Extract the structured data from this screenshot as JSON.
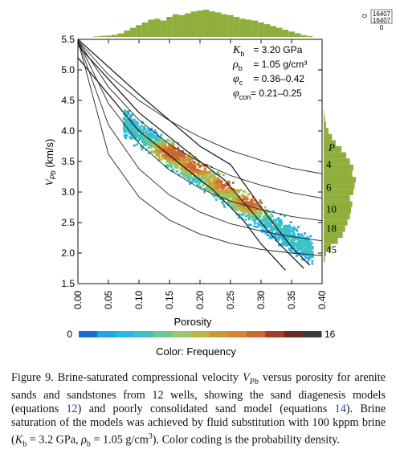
{
  "chart_data": {
    "type": "scatter",
    "title": "",
    "xlabel": "Porosity",
    "ylabel_main": "V",
    "ylabel_sub": "Pb",
    "ylabel_unit": " (km/s)",
    "xlim": [
      0.0,
      0.4
    ],
    "ylim": [
      1.5,
      5.5
    ],
    "x_ticks": [
      "0.00",
      "0.05",
      "0.10",
      "0.15",
      "0.20",
      "0.25",
      "0.30",
      "0.35",
      "0.40"
    ],
    "y_ticks": [
      "1.5",
      "2.0",
      "2.5",
      "3.0",
      "3.5",
      "4.0",
      "4.5",
      "5.0",
      "5.5"
    ],
    "grid": false,
    "parameters": [
      {
        "symbol": "K",
        "sub": "b",
        "text": " = 3.20 GPa"
      },
      {
        "symbol": "ρ",
        "sub": "b",
        "text": " = 1.05 g/cm³"
      },
      {
        "symbol": "φ",
        "sub": "c",
        "text": " = 0.36–0.42"
      },
      {
        "symbol": "φ",
        "sub": "con",
        "text": "= 0.21–0.25"
      }
    ],
    "pressure_label": "P",
    "pressure_values": [
      "4",
      "6",
      "10",
      "18",
      "45"
    ],
    "model_curves": [
      {
        "p": "4",
        "points": [
          [
            0.0,
            5.48
          ],
          [
            0.05,
            4.92
          ],
          [
            0.1,
            4.5
          ],
          [
            0.15,
            4.17
          ],
          [
            0.2,
            3.9
          ],
          [
            0.25,
            3.68
          ],
          [
            0.3,
            3.52
          ],
          [
            0.35,
            3.39
          ],
          [
            0.4,
            3.3
          ]
        ]
      },
      {
        "p": "6",
        "points": [
          [
            0.0,
            5.48
          ],
          [
            0.05,
            4.72
          ],
          [
            0.1,
            4.18
          ],
          [
            0.15,
            3.78
          ],
          [
            0.2,
            3.49
          ],
          [
            0.25,
            3.27
          ],
          [
            0.3,
            3.11
          ],
          [
            0.35,
            2.99
          ],
          [
            0.4,
            2.9
          ]
        ]
      },
      {
        "p": "10",
        "points": [
          [
            0.0,
            5.48
          ],
          [
            0.05,
            4.45
          ],
          [
            0.1,
            3.8
          ],
          [
            0.15,
            3.36
          ],
          [
            0.2,
            3.06
          ],
          [
            0.25,
            2.85
          ],
          [
            0.3,
            2.71
          ],
          [
            0.35,
            2.6
          ],
          [
            0.4,
            2.53
          ]
        ]
      },
      {
        "p": "18",
        "points": [
          [
            0.0,
            5.48
          ],
          [
            0.05,
            4.1
          ],
          [
            0.1,
            3.38
          ],
          [
            0.15,
            2.95
          ],
          [
            0.2,
            2.67
          ],
          [
            0.25,
            2.48
          ],
          [
            0.3,
            2.36
          ],
          [
            0.35,
            2.27
          ],
          [
            0.4,
            2.2
          ]
        ]
      },
      {
        "p": "45",
        "points": [
          [
            0.0,
            5.48
          ],
          [
            0.05,
            3.62
          ],
          [
            0.1,
            2.92
          ],
          [
            0.15,
            2.54
          ],
          [
            0.2,
            2.31
          ],
          [
            0.25,
            2.16
          ],
          [
            0.3,
            2.06
          ],
          [
            0.35,
            2.0
          ],
          [
            0.4,
            1.96
          ]
        ]
      }
    ],
    "diagenesis_lines": [
      [
        [
          0.0,
          5.5
        ],
        [
          0.1,
          4.6
        ],
        [
          0.2,
          3.75
        ],
        [
          0.25,
          3.45
        ],
        [
          0.3,
          2.75
        ],
        [
          0.35,
          2.1
        ],
        [
          0.38,
          1.8
        ]
      ],
      [
        [
          0.0,
          5.4
        ],
        [
          0.1,
          4.3
        ],
        [
          0.2,
          3.5
        ],
        [
          0.24,
          3.2
        ],
        [
          0.3,
          2.5
        ],
        [
          0.33,
          2.15
        ],
        [
          0.37,
          1.75
        ]
      ],
      [
        [
          0.0,
          5.2
        ],
        [
          0.1,
          4.0
        ],
        [
          0.2,
          3.2
        ],
        [
          0.22,
          3.05
        ],
        [
          0.27,
          2.55
        ],
        [
          0.3,
          2.15
        ],
        [
          0.34,
          1.72
        ]
      ]
    ],
    "density": {
      "description_free": true,
      "color_min": "0",
      "color_max": "16",
      "colorbar_title": "Color: Frequency",
      "center_line": [
        [
          0.08,
          4.1
        ],
        [
          0.4,
          1.9
        ]
      ],
      "x_range": [
        0.075,
        0.385
      ],
      "spread_v": 0.17,
      "hot_spots": [
        [
          0.2,
          3.45
        ],
        [
          0.25,
          3.15
        ],
        [
          0.29,
          2.85
        ],
        [
          0.16,
          3.65
        ]
      ],
      "colors": [
        "#1aa8e6",
        "#29b6e8",
        "#3ec3c5",
        "#6cc98d",
        "#9bc86b",
        "#b9b53e",
        "#c99a35",
        "#d9842e",
        "#c96a30"
      ]
    },
    "x_histogram": {
      "color": "#8fae3c",
      "bins_x": [
        0.03,
        0.04,
        0.05,
        0.06,
        0.07,
        0.08,
        0.09,
        0.1,
        0.11,
        0.12,
        0.13,
        0.14,
        0.15,
        0.16,
        0.17,
        0.18,
        0.19,
        0.2,
        0.21,
        0.22,
        0.23,
        0.24,
        0.25,
        0.26,
        0.27,
        0.28,
        0.29,
        0.3,
        0.31,
        0.32,
        0.33,
        0.34,
        0.35,
        0.36,
        0.37,
        0.38
      ],
      "counts": [
        0.3,
        0.6,
        0.8,
        1.2,
        2.0,
        3.5,
        5.0,
        6.5,
        8.0,
        9.5,
        10.0,
        9.0,
        11.0,
        12.5,
        12.0,
        13.0,
        14.0,
        14.5,
        15.0,
        14.0,
        13.5,
        12.5,
        12.0,
        11.0,
        10.0,
        9.5,
        9.0,
        8.0,
        7.0,
        6.0,
        5.0,
        4.0,
        3.0,
        2.0,
        1.0,
        0.5
      ]
    },
    "y_histogram": {
      "color": "#8fae3c",
      "bins_y": [
        1.9,
        2.0,
        2.1,
        2.2,
        2.3,
        2.4,
        2.5,
        2.6,
        2.7,
        2.8,
        2.9,
        3.0,
        3.1,
        3.2,
        3.3,
        3.4,
        3.5,
        3.6,
        3.7,
        3.8,
        3.9,
        4.0,
        4.1,
        4.2,
        4.3
      ],
      "counts": [
        0.5,
        1.0,
        3.0,
        6.0,
        8.0,
        9.0,
        10.0,
        11.0,
        11.5,
        12.0,
        11.0,
        12.5,
        13.0,
        13.5,
        12.0,
        12.5,
        11.0,
        9.5,
        7.5,
        5.0,
        3.5,
        2.0,
        1.0,
        0.5,
        0.2
      ]
    },
    "hist_scale_labels": [
      "0",
      "16407",
      "16407",
      "0"
    ]
  },
  "caption": {
    "parts": [
      "Figure 9. Brine-saturated compressional velocity ",
      "V",
      "Pb",
      " versus porosity for arenite sands and sandstones from 12 wells, showing the sand diagenesis models (equations ",
      "12",
      ") and poorly consolidated sand model (equations ",
      "14",
      "). Brine saturation of the models was achieved by fluid substitution with 100 kppm brine (",
      "K",
      "b",
      " = 3.2 GPa, ",
      "ρ",
      "b",
      " = 1.05 g/cm",
      "3",
      "). Color coding is the probability density."
    ]
  }
}
